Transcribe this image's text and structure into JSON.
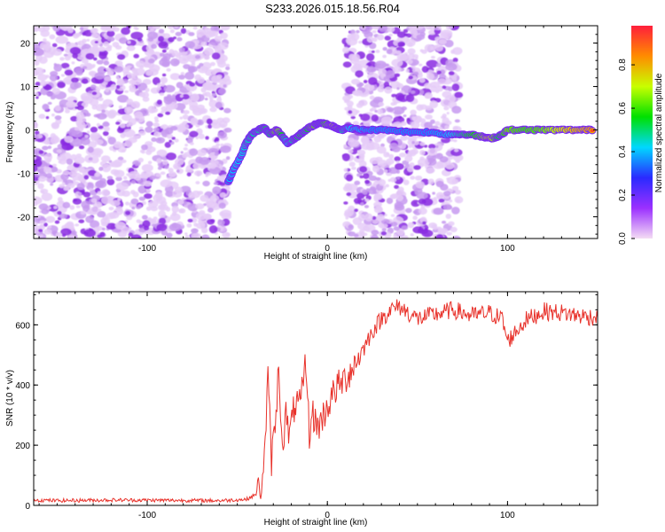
{
  "title": "S233.2026.015.18.56.R04",
  "chart_data": [
    {
      "type": "heatmap",
      "xlabel": "Height of straight line (km)",
      "ylabel": "Frequency (Hz)",
      "xlim": [
        -163,
        150
      ],
      "ylim": [
        -25,
        24
      ],
      "x_ticks": [
        "-100",
        "0",
        "100"
      ],
      "y_ticks": [
        "-20",
        "-10",
        "0",
        "10",
        "20"
      ],
      "colorbar": {
        "label": "Normalized spectral amplitude",
        "range": [
          0,
          0.98
        ],
        "ticks": [
          "0.0",
          "0.2",
          "0.4",
          "0.6",
          "0.8"
        ],
        "colors": [
          "#f4dcf4",
          "#9b30ff",
          "#2a2aff",
          "#00d8ff",
          "#00e000",
          "#c8ff00",
          "#ff8c00",
          "#ff1e3c"
        ]
      },
      "noise_regions_km": [
        [
          -163,
          -55
        ],
        [
          10,
          73
        ]
      ],
      "ridge": {
        "x": [
          -55,
          -52,
          -48,
          -45,
          -42,
          -38,
          -35,
          -32,
          -28,
          -25,
          -22,
          -18,
          -15,
          -12,
          -8,
          -5,
          -2,
          2,
          5,
          8,
          12,
          18,
          25,
          35,
          45,
          55,
          65,
          72,
          78,
          85,
          90,
          95,
          100,
          110,
          120,
          130,
          140,
          148
        ],
        "y": [
          -12,
          -9,
          -6,
          -3,
          -1,
          0,
          0.5,
          -1,
          0,
          -1.5,
          -3,
          -2,
          -1,
          0,
          1,
          1.5,
          1.5,
          1,
          0.5,
          0,
          0.5,
          0,
          0,
          0,
          -0.5,
          -0.5,
          -1,
          -1,
          -1,
          -1.5,
          -2,
          -1.5,
          0,
          0,
          0,
          0,
          0,
          0
        ],
        "amp": [
          0.25,
          0.3,
          0.3,
          0.35,
          0.4,
          0.4,
          0.5,
          0.4,
          0.75,
          0.5,
          0.3,
          0.45,
          0.5,
          0.45,
          0.7,
          0.55,
          0.55,
          0.7,
          0.8,
          0.4,
          0.3,
          0.25,
          0.2,
          0.2,
          0.2,
          0.2,
          0.25,
          0.35,
          0.5,
          0.6,
          0.85,
          0.5,
          0.65,
          0.6,
          0.65,
          0.8,
          0.9,
          0.95
        ]
      }
    },
    {
      "type": "line",
      "xlabel": "Height of straight line (km)",
      "ylabel": "SNR (10 * v/v)",
      "xlim": [
        -163,
        150
      ],
      "ylim": [
        0,
        710
      ],
      "x_ticks": [
        "-100",
        "0",
        "100"
      ],
      "y_ticks": [
        "0",
        "200",
        "400",
        "600"
      ],
      "series": [
        {
          "color": "#e8312a",
          "x": [
            -163,
            -150,
            -120,
            -90,
            -60,
            -45,
            -40,
            -37,
            -35,
            -33,
            -31,
            -29,
            -27,
            -25,
            -23,
            -21,
            -18,
            -15,
            -12,
            -10,
            -8,
            -5,
            0,
            5,
            10,
            15,
            20,
            25,
            30,
            35,
            40,
            45,
            50,
            60,
            70,
            80,
            90,
            97,
            100,
            110,
            120,
            130,
            140,
            150
          ],
          "y": [
            18,
            16,
            18,
            17,
            16,
            20,
            35,
            60,
            150,
            420,
            150,
            260,
            460,
            200,
            300,
            230,
            340,
            330,
            480,
            240,
            300,
            260,
            330,
            390,
            420,
            470,
            520,
            580,
            620,
            650,
            660,
            640,
            620,
            635,
            650,
            630,
            640,
            620,
            545,
            615,
            645,
            640,
            630,
            625
          ]
        }
      ]
    }
  ]
}
